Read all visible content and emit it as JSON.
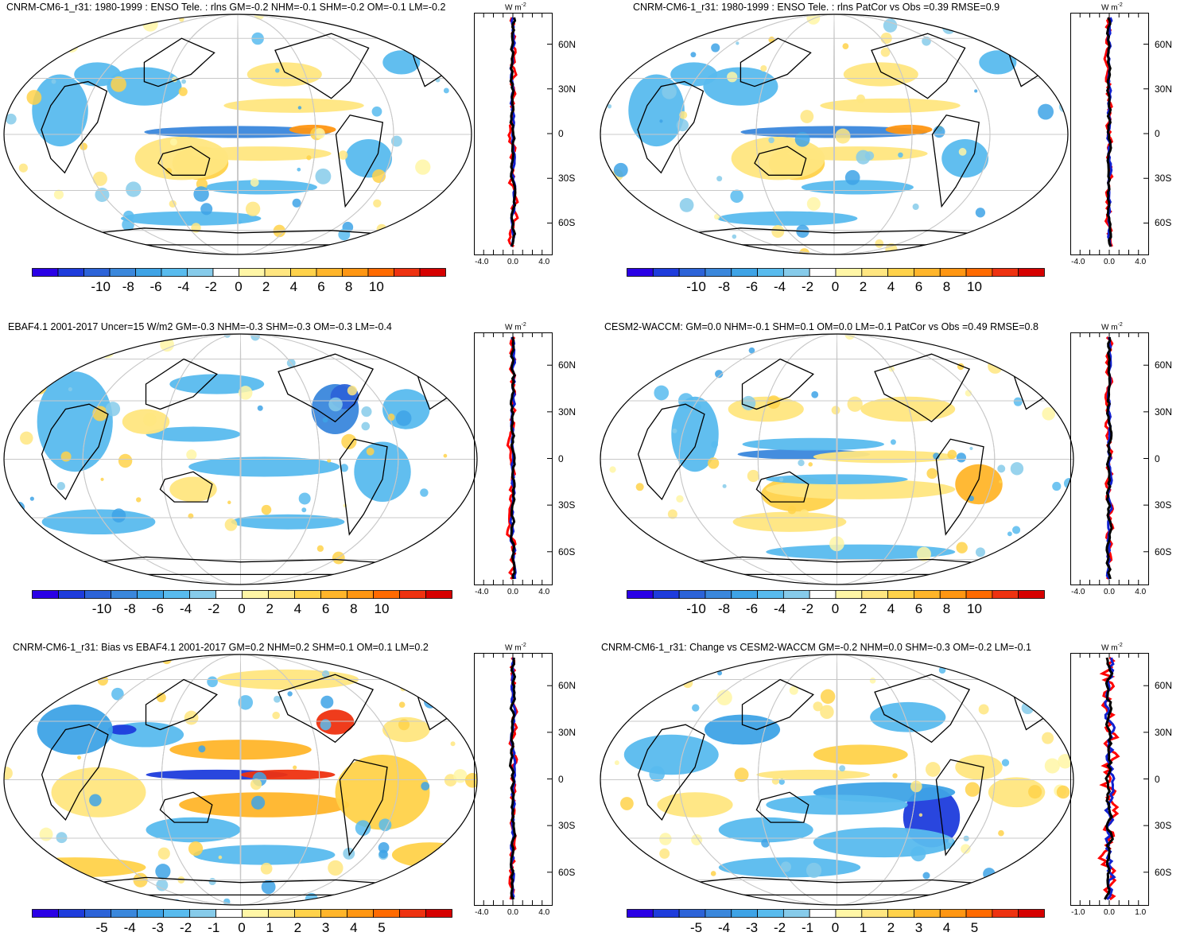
{
  "panels": [
    {
      "id": "p1",
      "title": "CNRM-CM6-1_r31: 1980-1999 : ENSO Tele. : rlns GM=-0.2 NHM=-0.1 SHM=-0.2 OM=-0.1 LM=-0.2",
      "colorbar_ticks": [
        "-10",
        "-8",
        "-6",
        "-4",
        "-2",
        "0",
        "2",
        "4",
        "6",
        "8",
        "10"
      ],
      "zonal_xticks": [
        "-4.0",
        "0.0",
        "4.0"
      ],
      "units": "W m",
      "units_exp": "-2",
      "lat_labels": [
        "60N",
        "30N",
        "0",
        "30S",
        "60S"
      ]
    },
    {
      "id": "p2",
      "title": "CNRM-CM6-1_r31: 1980-1999 : ENSO Tele. : rlns PatCor vs Obs =0.39 RMSE=0.9",
      "colorbar_ticks": [
        "-10",
        "-8",
        "-6",
        "-4",
        "-2",
        "0",
        "2",
        "4",
        "6",
        "8",
        "10"
      ],
      "zonal_xticks": [
        "-4.0",
        "0.0",
        "4.0"
      ],
      "units": "W m",
      "units_exp": "-2",
      "lat_labels": [
        "60N",
        "30N",
        "0",
        "30S",
        "60S"
      ]
    },
    {
      "id": "p3",
      "title": "EBAF4.1 2001-2017 Uncer=15 W/m2 GM=-0.3 NHM=-0.3 SHM=-0.3 OM=-0.3 LM=-0.4",
      "colorbar_ticks": [
        "-10",
        "-8",
        "-6",
        "-4",
        "-2",
        "0",
        "2",
        "4",
        "6",
        "8",
        "10"
      ],
      "zonal_xticks": [
        "-4.0",
        "0.0",
        "4.0"
      ],
      "units": "W m",
      "units_exp": "-2",
      "lat_labels": [
        "60N",
        "30N",
        "0",
        "30S",
        "60S"
      ]
    },
    {
      "id": "p4",
      "title": "CESM2-WACCM: GM=0.0 NHM=-0.1 SHM=0.1 OM=0.0 LM=-0.1 PatCor vs Obs =0.49 RMSE=0.8",
      "colorbar_ticks": [
        "-10",
        "-8",
        "-6",
        "-4",
        "-2",
        "0",
        "2",
        "4",
        "6",
        "8",
        "10"
      ],
      "zonal_xticks": [
        "-4.0",
        "0.0",
        "4.0"
      ],
      "units": "W m",
      "units_exp": "-2",
      "lat_labels": [
        "60N",
        "30N",
        "0",
        "30S",
        "60S"
      ]
    },
    {
      "id": "p5",
      "title": "CNRM-CM6-1_r31: Bias vs EBAF4.1 2001-2017 GM=0.2 NHM=0.2 SHM=0.1 OM=0.1 LM=0.2",
      "colorbar_ticks": [
        "-5",
        "-4",
        "-3",
        "-2",
        "-1",
        "0",
        "1",
        "2",
        "3",
        "4",
        "5"
      ],
      "zonal_xticks": [
        "-4.0",
        "0.0",
        "4.0"
      ],
      "units": "W m",
      "units_exp": "-2",
      "lat_labels": [
        "60N",
        "30N",
        "0",
        "30S",
        "60S"
      ]
    },
    {
      "id": "p6",
      "title": "CNRM-CM6-1_r31: Change vs CESM2-WACCM GM=-0.2 NHM=0.0 SHM=-0.3 OM=-0.2 LM=-0.1",
      "colorbar_ticks": [
        "-5",
        "-4",
        "-3",
        "-2",
        "-1",
        "0",
        "1",
        "2",
        "3",
        "4",
        "5"
      ],
      "zonal_xticks": [
        "-1.0",
        "0.0",
        "1.0"
      ],
      "units": "W m",
      "units_exp": "-2",
      "lat_labels": [
        "60N",
        "30N",
        "0",
        "30S",
        "60S"
      ]
    }
  ],
  "colors": {
    "palette": [
      "#2a00e6",
      "#1e3cdc",
      "#2c63d8",
      "#3a87dc",
      "#3ea3e6",
      "#58bbee",
      "#86cbea",
      "#ffffff",
      "#fff6a6",
      "#ffe680",
      "#ffd24a",
      "#ffb52a",
      "#ff9612",
      "#ff6a00",
      "#ee3210",
      "#d60000"
    ],
    "red_line": "#ff0000",
    "blue_line": "#1020d0",
    "black_line": "#000000",
    "grid": "#c8c8c8"
  }
}
